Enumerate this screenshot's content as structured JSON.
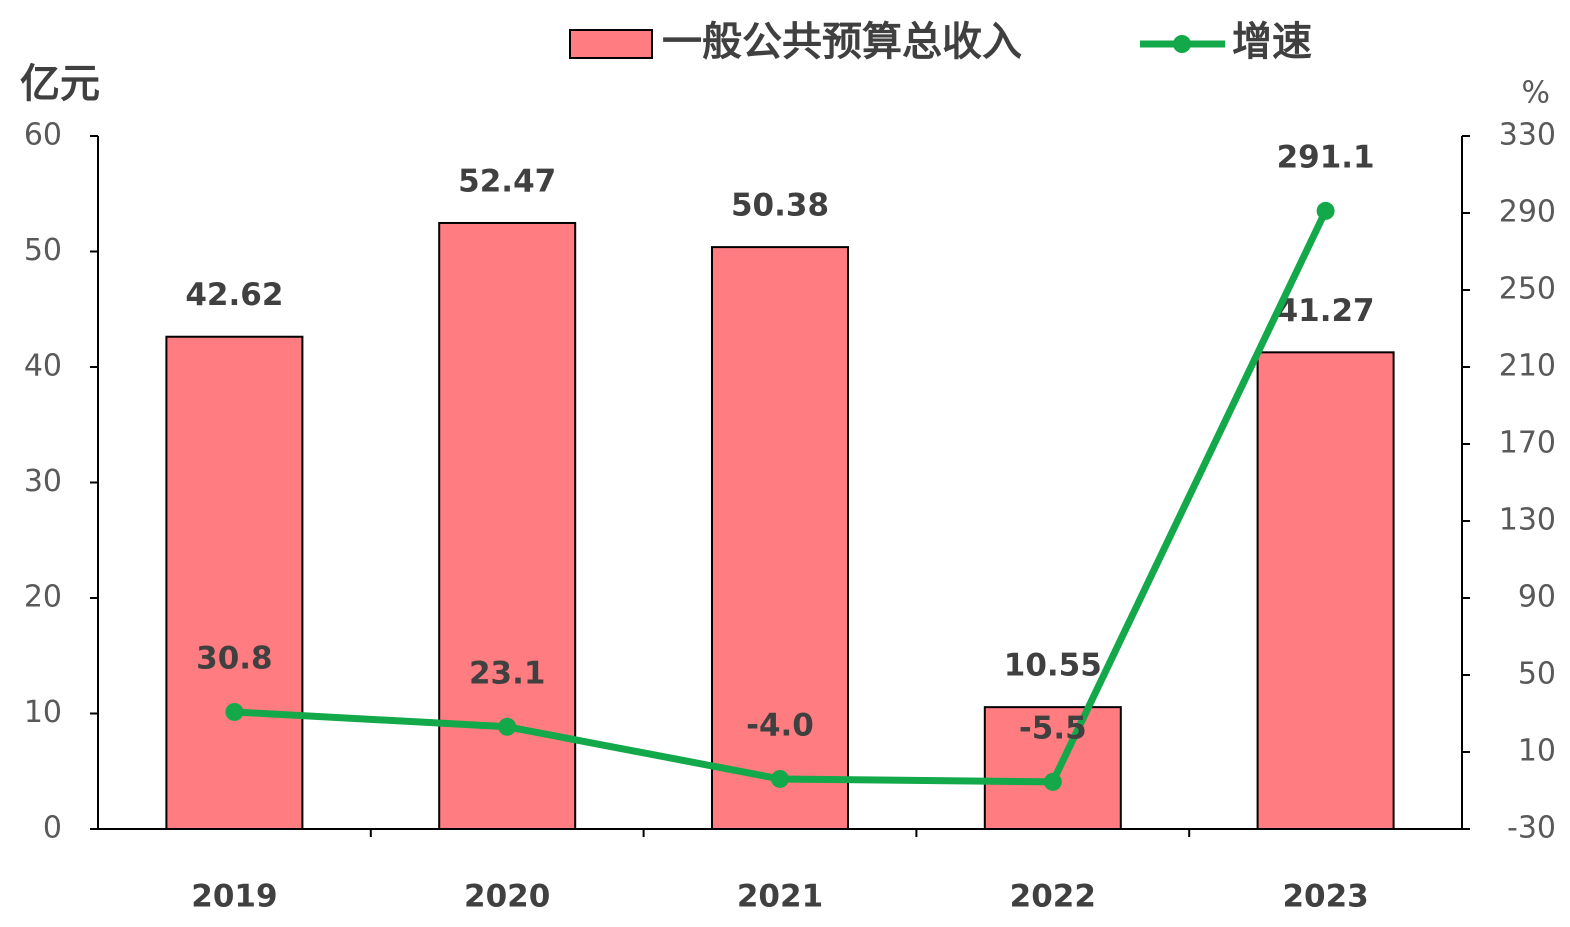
{
  "chart_data": {
    "type": "bar-line",
    "ylabel": "亿元",
    "y2label": "%",
    "categories": [
      "2019",
      "2020",
      "2021",
      "2022",
      "2023"
    ],
    "series": [
      {
        "name": "一般公共预算总收入",
        "type": "bar",
        "color": "#ff7c80",
        "values": [
          42.62,
          52.47,
          50.38,
          10.55,
          41.27
        ]
      },
      {
        "name": "增速",
        "type": "line",
        "axis": "y2",
        "color": "#13a84a",
        "values": [
          30.8,
          23.1,
          -4,
          -5.5,
          291.1
        ],
        "value_labels": [
          "30.8",
          "23.1",
          "-4.0",
          "-5.5",
          "291.1"
        ]
      }
    ],
    "ylim": [
      0,
      60
    ],
    "yticks": [
      0,
      10,
      20,
      30,
      40,
      50,
      60
    ],
    "y2lim": [
      -30,
      330
    ],
    "y2ticks": [
      -30,
      10,
      50,
      90,
      130,
      170,
      210,
      250,
      290,
      330
    ],
    "legend": "top"
  }
}
